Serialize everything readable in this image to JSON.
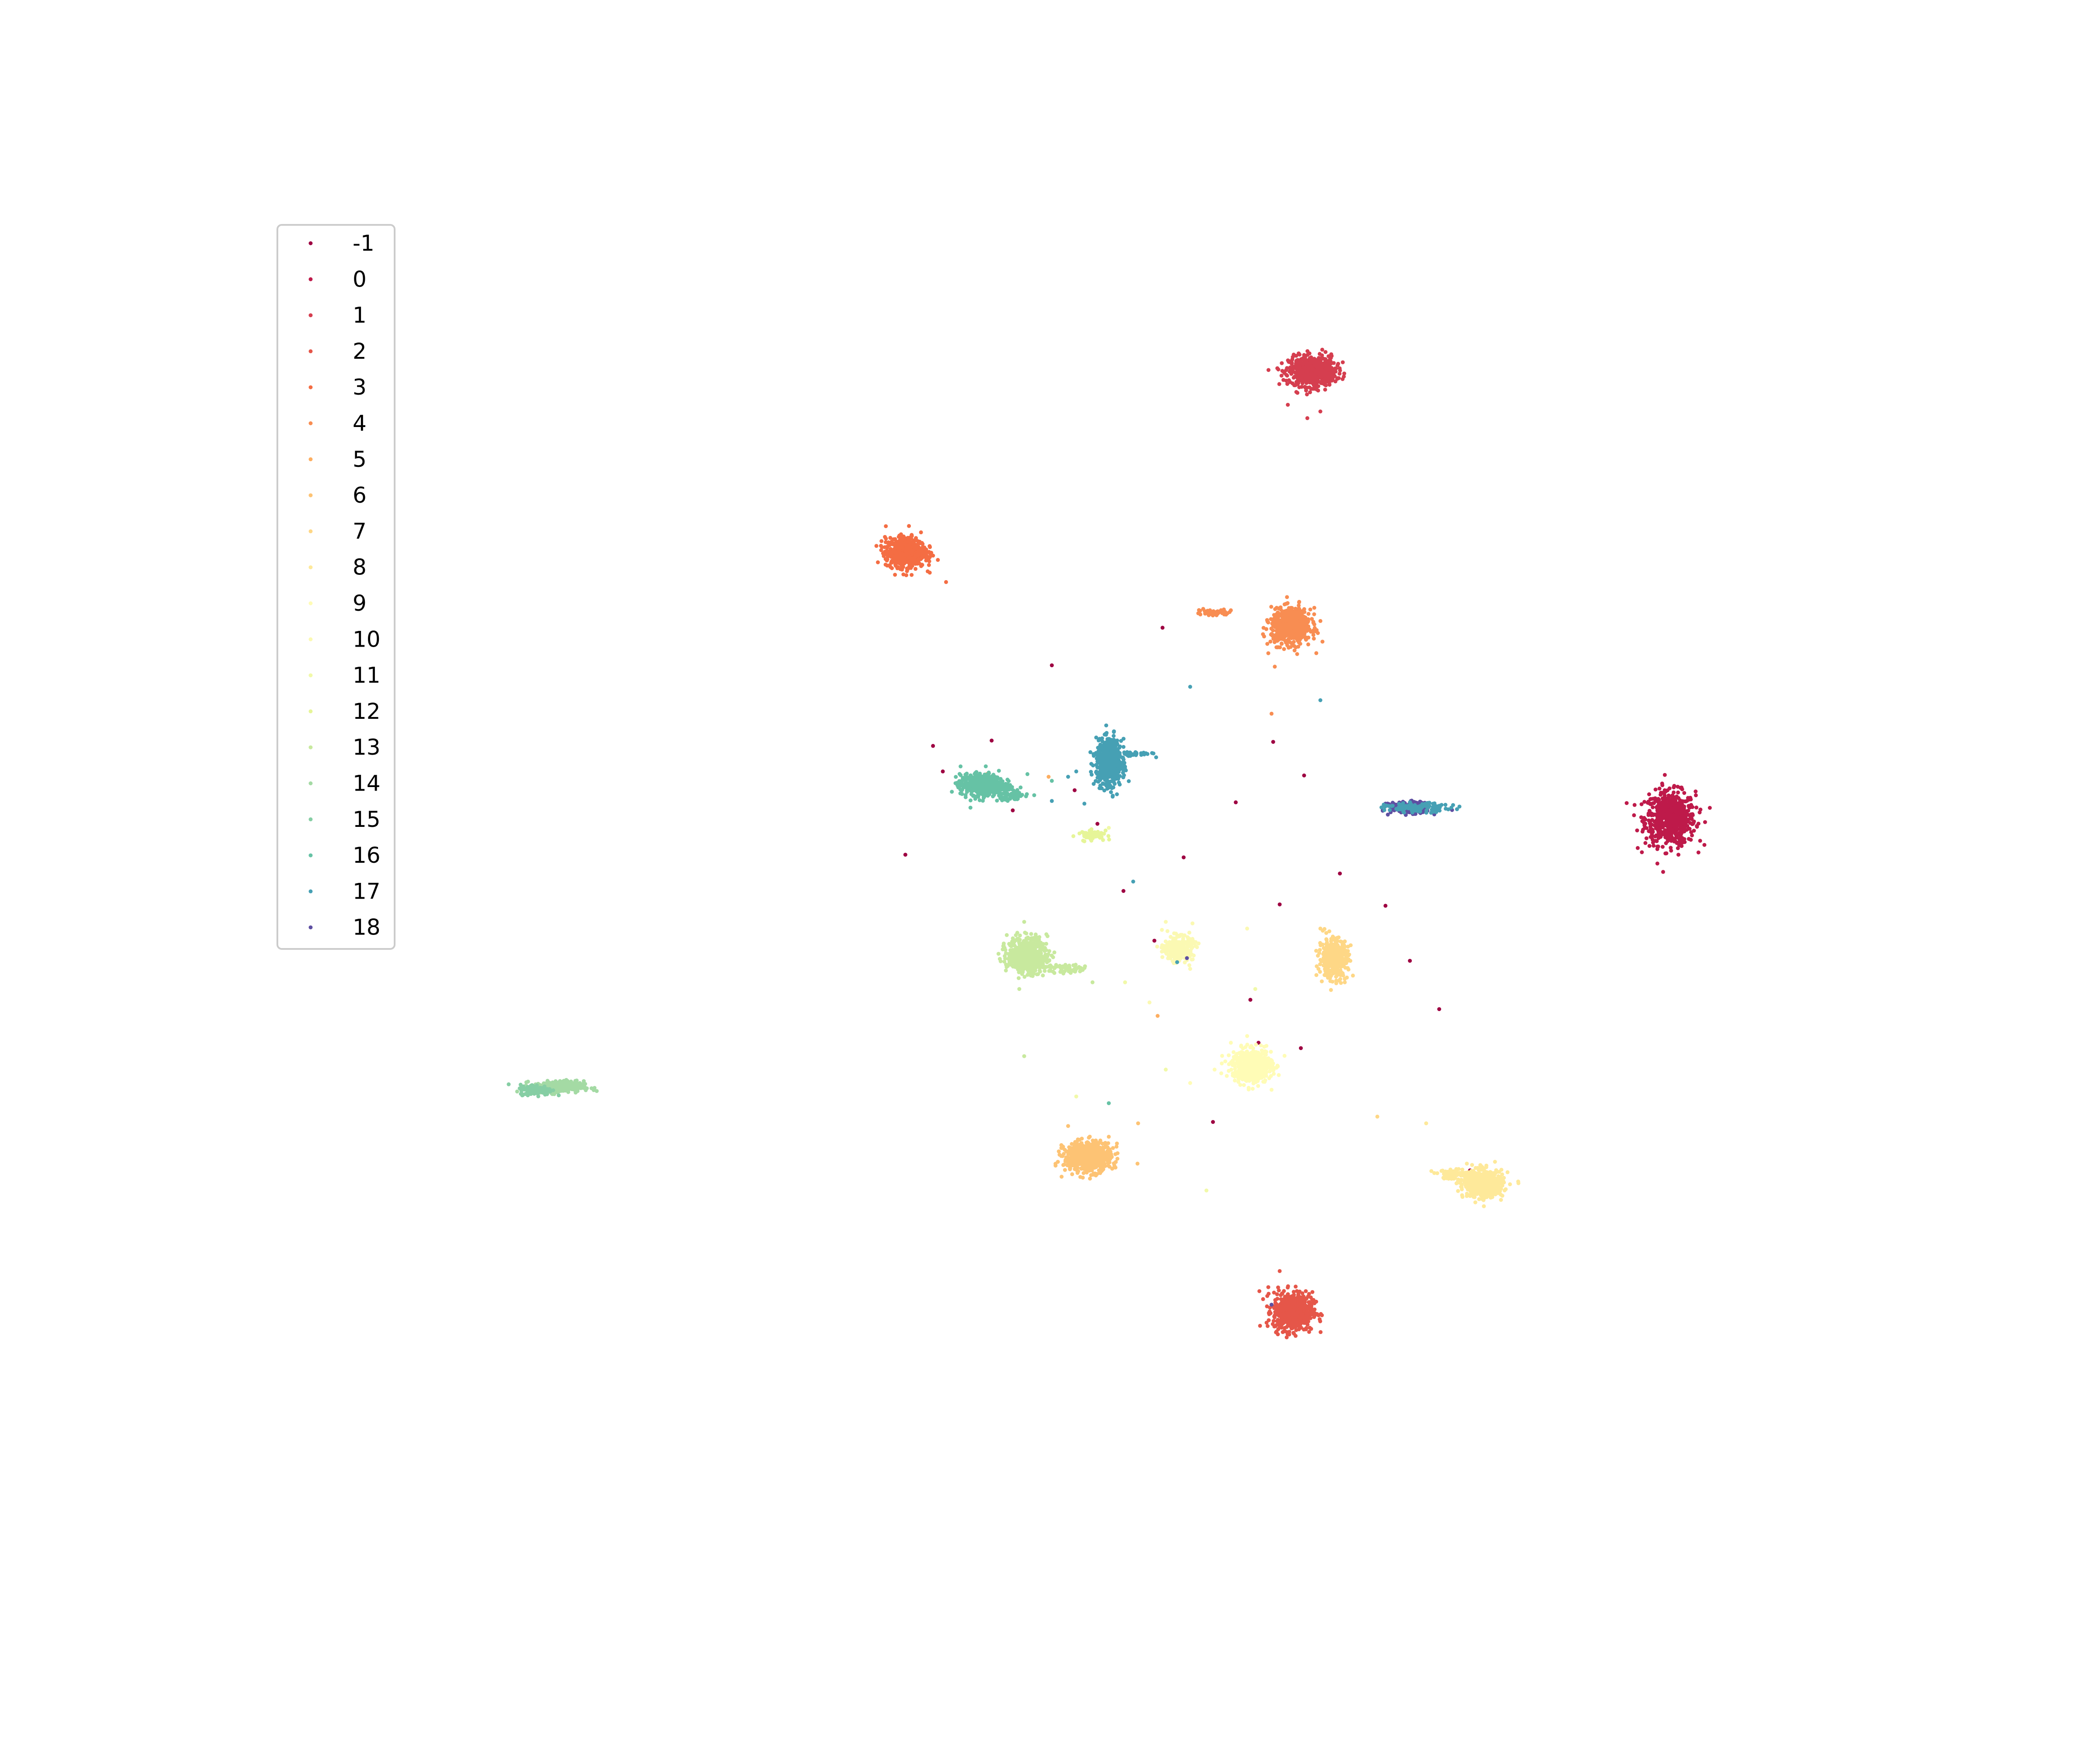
{
  "chart_data": {
    "type": "scatter",
    "title": "",
    "xlabel": "",
    "ylabel": "",
    "axes_visible": false,
    "grid": false,
    "legend_position": "upper-left",
    "xlim": [
      0,
      100
    ],
    "ylim": [
      0,
      100
    ],
    "series": [
      {
        "name": "-1",
        "color": "#9e0142",
        "clusters": [],
        "stray": [
          [
            39.5,
            52.0
          ],
          [
            41.2,
            60.1
          ],
          [
            44.8,
            60.5
          ],
          [
            46.1,
            55.3
          ],
          [
            48.5,
            66.1
          ],
          [
            51.3,
            54.3
          ],
          [
            52.9,
            49.3
          ],
          [
            54.8,
            45.6
          ],
          [
            56.6,
            51.8
          ],
          [
            59.8,
            55.9
          ],
          [
            60.7,
            41.2
          ],
          [
            61.2,
            38.0
          ],
          [
            62.1,
            60.4
          ],
          [
            64.0,
            57.9
          ],
          [
            66.2,
            50.6
          ],
          [
            69.0,
            48.2
          ],
          [
            70.5,
            44.1
          ],
          [
            72.3,
            40.5
          ],
          [
            62.5,
            48.3
          ],
          [
            41.8,
            58.2
          ],
          [
            49.9,
            56.8
          ],
          [
            63.8,
            37.6
          ],
          [
            58.4,
            32.1
          ],
          [
            55.3,
            68.9
          ],
          [
            74.2,
            28.5
          ]
        ]
      },
      {
        "name": "0",
        "color": "#be1a4a",
        "clusters": [
          [
            86.5,
            54.7,
            1.4,
            1.8,
            650
          ]
        ],
        "stray": [
          [
            84.5,
            52.5
          ],
          [
            85.2,
            56.5
          ],
          [
            87.0,
            52.0
          ],
          [
            86.0,
            57.3
          ]
        ]
      },
      {
        "name": "1",
        "color": "#d53e4f",
        "clusters": [
          [
            64.5,
            88.0,
            1.3,
            1.0,
            650
          ]
        ],
        "stray": [
          [
            63.0,
            85.5
          ],
          [
            65.0,
            85.0
          ],
          [
            64.2,
            84.5
          ],
          [
            63.5,
            87.0
          ]
        ]
      },
      {
        "name": "2",
        "color": "#e55649",
        "clusters": [
          [
            63.3,
            18.0,
            1.1,
            1.3,
            650
          ]
        ],
        "stray": [
          [
            62.5,
            21.0
          ],
          [
            61.8,
            19.8
          ],
          [
            64.8,
            17.8
          ]
        ]
      },
      {
        "name": "3",
        "color": "#f46d43",
        "clusters": [
          [
            39.5,
            74.5,
            1.1,
            1.0,
            650
          ]
        ],
        "stray": [
          [
            38.0,
            75.0
          ],
          [
            41.0,
            73.0
          ],
          [
            42.0,
            72.3
          ]
        ]
      },
      {
        "name": "4",
        "color": "#f88d52",
        "clusters": [
          [
            63.2,
            69.0,
            1.1,
            1.2,
            650
          ],
          [
            58.5,
            70.0,
            1.0,
            0.2,
            40
          ]
        ],
        "stray": [
          [
            61.8,
            67.0
          ],
          [
            62.2,
            66.0
          ],
          [
            62.0,
            62.5
          ],
          [
            57.8,
            70.3
          ],
          [
            59.5,
            70.2
          ]
        ]
      },
      {
        "name": "5",
        "color": "#fdae61",
        "clusters": [],
        "stray": [
          [
            44.5,
            58.0
          ],
          [
            55.0,
            40.0
          ],
          [
            48.3,
            57.8
          ]
        ]
      },
      {
        "name": "6",
        "color": "#fdc374",
        "clusters": [
          [
            50.7,
            29.5,
            1.3,
            1.0,
            650
          ]
        ],
        "stray": [
          [
            52.5,
            30.5
          ],
          [
            53.8,
            32.0
          ],
          [
            49.5,
            31.8
          ],
          [
            52.0,
            31.0
          ]
        ]
      },
      {
        "name": "7",
        "color": "#fed786",
        "clusters": [
          [
            65.8,
            44.3,
            0.8,
            1.3,
            400
          ]
        ],
        "stray": [
          [
            65.0,
            46.5
          ],
          [
            66.5,
            42.5
          ],
          [
            67.0,
            43.0
          ],
          [
            68.5,
            32.5
          ]
        ]
      },
      {
        "name": "8",
        "color": "#fee99a",
        "clusters": [
          [
            75.0,
            27.5,
            1.1,
            0.9,
            600
          ],
          [
            73.3,
            28.2,
            1.2,
            0.3,
            70
          ]
        ],
        "stray": [
          [
            72.0,
            28.3
          ],
          [
            74.0,
            29.0
          ],
          [
            71.5,
            32.0
          ]
        ]
      },
      {
        "name": "9",
        "color": "#fffcb6",
        "clusters": [
          [
            60.8,
            36.3,
            1.1,
            1.1,
            600
          ]
        ],
        "stray": [
          [
            59.5,
            38.0
          ],
          [
            58.5,
            36.0
          ],
          [
            62.0,
            34.5
          ],
          [
            57.0,
            35.0
          ],
          [
            60.5,
            38.5
          ]
        ]
      },
      {
        "name": "10",
        "color": "#fbf9b3",
        "clusters": [
          [
            56.3,
            45.0,
            0.8,
            0.8,
            300
          ]
        ],
        "stray": [
          [
            55.5,
            47.0
          ],
          [
            57.0,
            43.5
          ],
          [
            54.5,
            41.0
          ],
          [
            60.5,
            46.5
          ]
        ]
      },
      {
        "name": "11",
        "color": "#f1f9a9",
        "clusters": [],
        "stray": [
          [
            51.5,
            53.3
          ],
          [
            51.0,
            53.5
          ],
          [
            52.0,
            54.0
          ],
          [
            53.0,
            42.5
          ],
          [
            55.5,
            36.0
          ],
          [
            50.0,
            34.0
          ],
          [
            58.0,
            27.0
          ],
          [
            61.0,
            42.0
          ]
        ]
      },
      {
        "name": "12",
        "color": "#e6f598",
        "clusters": [
          [
            51.0,
            53.5,
            0.8,
            0.3,
            60
          ]
        ],
        "stray": [
          [
            50.5,
            53.0
          ],
          [
            51.8,
            53.8
          ]
        ]
      },
      {
        "name": "13",
        "color": "#c8e99e",
        "clusters": [
          [
            47.0,
            44.5,
            1.1,
            1.2,
            600
          ],
          [
            49.5,
            43.5,
            1.2,
            0.3,
            60
          ]
        ],
        "stray": [
          [
            46.8,
            47.0
          ],
          [
            51.0,
            42.5
          ],
          [
            46.5,
            42.0
          ],
          [
            46.8,
            37.0
          ]
        ]
      },
      {
        "name": "14",
        "color": "#a4daa4",
        "clusters": [
          [
            18.2,
            34.7,
            1.4,
            0.4,
            300
          ]
        ],
        "stray": [
          [
            19.5,
            35.0
          ],
          [
            17.0,
            34.5
          ]
        ]
      },
      {
        "name": "15",
        "color": "#86cea4",
        "clusters": [
          [
            16.8,
            34.5,
            0.9,
            0.35,
            150
          ]
        ],
        "stray": [
          [
            16.3,
            34.2
          ]
        ]
      },
      {
        "name": "16",
        "color": "#66c2a5",
        "clusters": [
          [
            44.2,
            57.2,
            1.2,
            0.7,
            600
          ],
          [
            46.0,
            56.5,
            1.0,
            0.5,
            60
          ]
        ],
        "stray": [
          [
            47.0,
            58.0
          ],
          [
            48.5,
            57.5
          ],
          [
            43.5,
            55.5
          ],
          [
            52.0,
            33.5
          ]
        ]
      },
      {
        "name": "17",
        "color": "#46a0b4",
        "clusters": [
          [
            52.0,
            58.9,
            0.7,
            1.5,
            700
          ],
          [
            53.5,
            59.5,
            1.0,
            0.15,
            40
          ]
        ],
        "stray": [
          [
            50.0,
            58.2
          ],
          [
            49.5,
            57.8
          ],
          [
            48.5,
            56.0
          ],
          [
            50.5,
            55.8
          ],
          [
            57.0,
            64.5
          ],
          [
            65.0,
            63.5
          ],
          [
            53.5,
            50.0
          ],
          [
            56.2,
            44.0
          ],
          [
            51.5,
            58.5
          ],
          [
            52.5,
            56.5
          ]
        ]
      },
      {
        "name": "18",
        "color": "#5e4fa2",
        "clusters": [
          [
            70.5,
            55.5,
            1.1,
            0.35,
            280
          ]
        ],
        "stray": [
          [
            69.0,
            55.8
          ],
          [
            71.5,
            55.2
          ],
          [
            72.0,
            55.0
          ],
          [
            62.0,
            18.5
          ],
          [
            56.8,
            44.3
          ]
        ]
      }
    ],
    "teal_tail": [
      [
        71.0,
        55.5,
        1.8,
        0.3,
        120
      ]
    ]
  }
}
